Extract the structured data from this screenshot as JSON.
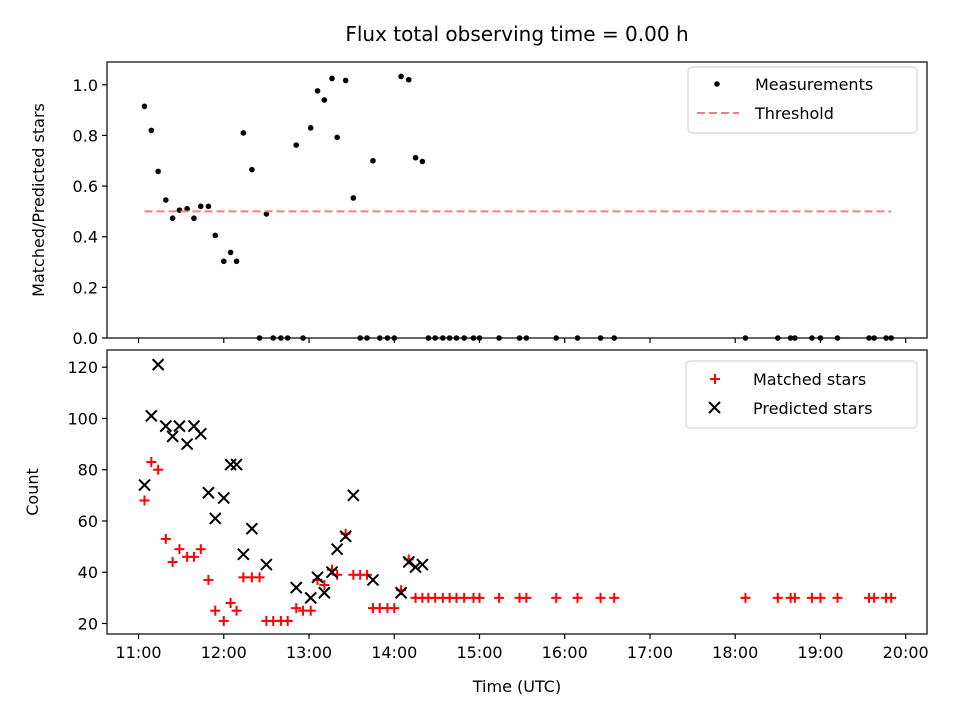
{
  "figure": {
    "title": "Flux total observing time = 0.00 h"
  },
  "chart_data": [
    {
      "type": "scatter",
      "ylabel": "Matched/Predicted stars",
      "xlim": [
        10.63,
        20.25
      ],
      "ylim": [
        0,
        1.09
      ],
      "yticks": [
        0.0,
        0.2,
        0.4,
        0.6,
        0.8,
        1.0
      ],
      "ytick_labels": [
        "0.0",
        "0.2",
        "0.4",
        "0.6",
        "0.8",
        "1.0"
      ],
      "legend_position": "top-right",
      "series": [
        {
          "name": "Measurements",
          "color": "#000000",
          "marker": "dot",
          "points": [
            [
              11.07,
              0.915
            ],
            [
              11.15,
              0.82
            ],
            [
              11.23,
              0.658
            ],
            [
              11.32,
              0.545
            ],
            [
              11.4,
              0.473
            ],
            [
              11.48,
              0.505
            ],
            [
              11.57,
              0.51
            ],
            [
              11.65,
              0.473
            ],
            [
              11.73,
              0.52
            ],
            [
              11.82,
              0.52
            ],
            [
              11.9,
              0.405
            ],
            [
              12.0,
              0.303
            ],
            [
              12.08,
              0.338
            ],
            [
              12.15,
              0.303
            ],
            [
              12.23,
              0.81
            ],
            [
              12.33,
              0.665
            ],
            [
              12.42,
              0.0
            ],
            [
              12.5,
              0.49
            ],
            [
              12.58,
              0.0
            ],
            [
              12.67,
              0.0
            ],
            [
              12.75,
              0.0
            ],
            [
              12.85,
              0.762
            ],
            [
              12.93,
              0.0
            ],
            [
              13.02,
              0.83
            ],
            [
              13.1,
              0.976
            ],
            [
              13.18,
              0.94
            ],
            [
              13.27,
              1.025
            ],
            [
              13.33,
              0.792
            ],
            [
              13.43,
              1.017
            ],
            [
              13.52,
              0.553
            ],
            [
              13.6,
              0.0
            ],
            [
              13.68,
              0.0
            ],
            [
              13.75,
              0.7
            ],
            [
              13.83,
              0.0
            ],
            [
              13.92,
              0.0
            ],
            [
              14.0,
              0.0
            ],
            [
              14.08,
              1.033
            ],
            [
              14.17,
              1.02
            ],
            [
              14.25,
              0.712
            ],
            [
              14.33,
              0.697
            ],
            [
              14.4,
              0.0
            ],
            [
              14.48,
              0.0
            ],
            [
              14.57,
              0.0
            ],
            [
              14.65,
              0.0
            ],
            [
              14.73,
              0.0
            ],
            [
              14.82,
              0.0
            ],
            [
              14.93,
              0.0
            ],
            [
              15.0,
              0.0
            ],
            [
              15.23,
              0.0
            ],
            [
              15.47,
              0.0
            ],
            [
              15.55,
              0.0
            ],
            [
              15.9,
              0.0
            ],
            [
              16.15,
              0.0
            ],
            [
              16.42,
              0.0
            ],
            [
              16.58,
              0.0
            ],
            [
              18.12,
              0.0
            ],
            [
              18.5,
              0.0
            ],
            [
              18.65,
              0.0
            ],
            [
              18.7,
              0.0
            ],
            [
              18.9,
              0.0
            ],
            [
              19.0,
              0.0
            ],
            [
              19.2,
              0.0
            ],
            [
              19.57,
              0.0
            ],
            [
              19.63,
              0.0
            ],
            [
              19.77,
              0.0
            ],
            [
              19.83,
              0.0
            ]
          ]
        },
        {
          "name": "Threshold",
          "color": "#f08080",
          "linestyle": "dashed",
          "x": [
            11.07,
            19.83
          ],
          "y": [
            0.5,
            0.5
          ]
        }
      ]
    },
    {
      "type": "scatter",
      "xlabel": "Time (UTC)",
      "ylabel": "Count",
      "xlim": [
        10.63,
        20.25
      ],
      "ylim": [
        15.9,
        126.7
      ],
      "xticks": [
        11,
        12,
        13,
        14,
        15,
        16,
        17,
        18,
        19,
        20
      ],
      "xtick_labels": [
        "11:00",
        "12:00",
        "13:00",
        "14:00",
        "15:00",
        "16:00",
        "17:00",
        "18:00",
        "19:00",
        "20:00"
      ],
      "yticks": [
        20,
        40,
        60,
        80,
        100,
        120
      ],
      "ytick_labels": [
        "20",
        "40",
        "60",
        "80",
        "100",
        "120"
      ],
      "legend_position": "top-right",
      "series": [
        {
          "name": "Matched stars",
          "color": "#ff0000",
          "marker": "plus",
          "points": [
            [
              11.07,
              68
            ],
            [
              11.15,
              83
            ],
            [
              11.23,
              80
            ],
            [
              11.32,
              53
            ],
            [
              11.4,
              44
            ],
            [
              11.48,
              49
            ],
            [
              11.57,
              46
            ],
            [
              11.65,
              46
            ],
            [
              11.73,
              49
            ],
            [
              11.82,
              37
            ],
            [
              11.9,
              25
            ],
            [
              12.0,
              21
            ],
            [
              12.08,
              28
            ],
            [
              12.15,
              25
            ],
            [
              12.23,
              38
            ],
            [
              12.33,
              38
            ],
            [
              12.42,
              38
            ],
            [
              12.5,
              21
            ],
            [
              12.58,
              21
            ],
            [
              12.67,
              21
            ],
            [
              12.75,
              21
            ],
            [
              12.85,
              26
            ],
            [
              12.93,
              25
            ],
            [
              13.02,
              25
            ],
            [
              13.1,
              37
            ],
            [
              13.18,
              35
            ],
            [
              13.27,
              41
            ],
            [
              13.33,
              39
            ],
            [
              13.43,
              55
            ],
            [
              13.52,
              39
            ],
            [
              13.6,
              39
            ],
            [
              13.68,
              39
            ],
            [
              13.75,
              26
            ],
            [
              13.83,
              26
            ],
            [
              13.92,
              26
            ],
            [
              14.0,
              26
            ],
            [
              14.08,
              33
            ],
            [
              14.17,
              45
            ],
            [
              14.25,
              30
            ],
            [
              14.33,
              30
            ],
            [
              14.4,
              30
            ],
            [
              14.48,
              30
            ],
            [
              14.57,
              30
            ],
            [
              14.65,
              30
            ],
            [
              14.73,
              30
            ],
            [
              14.82,
              30
            ],
            [
              14.93,
              30
            ],
            [
              15.0,
              30
            ],
            [
              15.23,
              30
            ],
            [
              15.47,
              30
            ],
            [
              15.55,
              30
            ],
            [
              15.9,
              30
            ],
            [
              16.15,
              30
            ],
            [
              16.42,
              30
            ],
            [
              16.58,
              30
            ],
            [
              18.12,
              30
            ],
            [
              18.5,
              30
            ],
            [
              18.65,
              30
            ],
            [
              18.7,
              30
            ],
            [
              18.9,
              30
            ],
            [
              19.0,
              30
            ],
            [
              19.2,
              30
            ],
            [
              19.57,
              30
            ],
            [
              19.63,
              30
            ],
            [
              19.77,
              30
            ],
            [
              19.83,
              30
            ]
          ]
        },
        {
          "name": "Predicted stars",
          "color": "#000000",
          "marker": "x",
          "points": [
            [
              11.07,
              74
            ],
            [
              11.15,
              101
            ],
            [
              11.23,
              121
            ],
            [
              11.32,
              97
            ],
            [
              11.4,
              93
            ],
            [
              11.48,
              97
            ],
            [
              11.57,
              90
            ],
            [
              11.65,
              97
            ],
            [
              11.73,
              94
            ],
            [
              11.82,
              71
            ],
            [
              11.9,
              61
            ],
            [
              12.0,
              69
            ],
            [
              12.08,
              82
            ],
            [
              12.15,
              82
            ],
            [
              12.23,
              47
            ],
            [
              12.33,
              57
            ],
            [
              12.5,
              43
            ],
            [
              12.85,
              34
            ],
            [
              13.02,
              30
            ],
            [
              13.1,
              38
            ],
            [
              13.18,
              32
            ],
            [
              13.27,
              40
            ],
            [
              13.33,
              49
            ],
            [
              13.43,
              54
            ],
            [
              13.52,
              70
            ],
            [
              13.75,
              37
            ],
            [
              14.08,
              32
            ],
            [
              14.17,
              44
            ],
            [
              14.25,
              42
            ],
            [
              14.33,
              43
            ]
          ]
        }
      ]
    }
  ]
}
